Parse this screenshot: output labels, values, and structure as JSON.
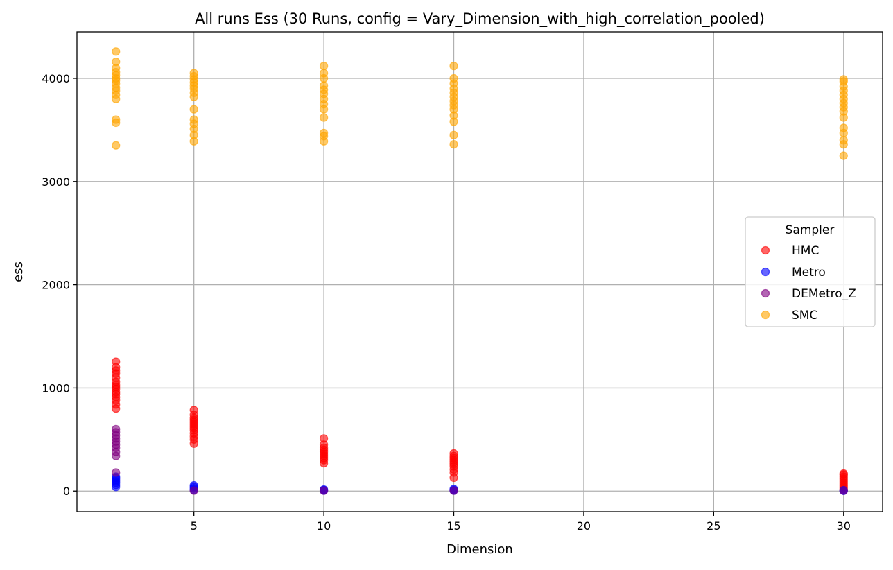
{
  "chart_data": {
    "type": "scatter",
    "title": "All runs Ess (30 Runs, config = Vary_Dimension_with_high_correlation_pooled)",
    "xlabel": "Dimension",
    "ylabel": "ess",
    "xlim": [
      0.5,
      31.5
    ],
    "ylim": [
      -200,
      4450
    ],
    "xticks": [
      5,
      10,
      15,
      20,
      25,
      30
    ],
    "yticks": [
      0,
      1000,
      2000,
      3000,
      4000
    ],
    "grid": true,
    "legend": {
      "title": "Sampler",
      "position": "center-right"
    },
    "series": [
      {
        "name": "HMC",
        "color": "#ff0000",
        "points": [
          [
            2,
            800
          ],
          [
            2,
            840
          ],
          [
            2,
            880
          ],
          [
            2,
            910
          ],
          [
            2,
            940
          ],
          [
            2,
            960
          ],
          [
            2,
            990
          ],
          [
            2,
            1010
          ],
          [
            2,
            1030
          ],
          [
            2,
            1060
          ],
          [
            2,
            1100
          ],
          [
            2,
            1140
          ],
          [
            2,
            1170
          ],
          [
            2,
            1200
          ],
          [
            2,
            1255
          ],
          [
            5,
            460
          ],
          [
            5,
            500
          ],
          [
            5,
            530
          ],
          [
            5,
            560
          ],
          [
            5,
            590
          ],
          [
            5,
            610
          ],
          [
            5,
            630
          ],
          [
            5,
            650
          ],
          [
            5,
            670
          ],
          [
            5,
            690
          ],
          [
            5,
            710
          ],
          [
            5,
            740
          ],
          [
            5,
            785
          ],
          [
            10,
            270
          ],
          [
            10,
            300
          ],
          [
            10,
            320
          ],
          [
            10,
            340
          ],
          [
            10,
            360
          ],
          [
            10,
            380
          ],
          [
            10,
            400
          ],
          [
            10,
            420
          ],
          [
            10,
            450
          ],
          [
            10,
            510
          ],
          [
            15,
            130
          ],
          [
            15,
            180
          ],
          [
            15,
            210
          ],
          [
            15,
            240
          ],
          [
            15,
            260
          ],
          [
            15,
            280
          ],
          [
            15,
            300
          ],
          [
            15,
            320
          ],
          [
            15,
            340
          ],
          [
            15,
            365
          ],
          [
            30,
            20
          ],
          [
            30,
            40
          ],
          [
            30,
            60
          ],
          [
            30,
            80
          ],
          [
            30,
            100
          ],
          [
            30,
            120
          ],
          [
            30,
            140
          ],
          [
            30,
            160
          ],
          [
            30,
            170
          ]
        ]
      },
      {
        "name": "Metro",
        "color": "#0000ff",
        "points": [
          [
            2,
            40
          ],
          [
            2,
            60
          ],
          [
            2,
            80
          ],
          [
            2,
            95
          ],
          [
            2,
            110
          ],
          [
            2,
            125
          ],
          [
            2,
            140
          ],
          [
            5,
            10
          ],
          [
            5,
            25
          ],
          [
            5,
            40
          ],
          [
            5,
            55
          ],
          [
            10,
            5
          ],
          [
            10,
            10
          ],
          [
            10,
            15
          ],
          [
            15,
            5
          ],
          [
            15,
            10
          ],
          [
            15,
            20
          ],
          [
            30,
            3
          ],
          [
            30,
            8
          ]
        ]
      },
      {
        "name": "DEMetro_Z",
        "color": "#800080",
        "points": [
          [
            2,
            180
          ],
          [
            2,
            340
          ],
          [
            2,
            380
          ],
          [
            2,
            420
          ],
          [
            2,
            450
          ],
          [
            2,
            480
          ],
          [
            2,
            510
          ],
          [
            2,
            540
          ],
          [
            2,
            570
          ],
          [
            2,
            600
          ],
          [
            5,
            5
          ],
          [
            10,
            5
          ],
          [
            15,
            5
          ],
          [
            30,
            5
          ]
        ]
      },
      {
        "name": "SMC",
        "color": "#ffa500",
        "points": [
          [
            2,
            3350
          ],
          [
            2,
            3570
          ],
          [
            2,
            3600
          ],
          [
            2,
            3800
          ],
          [
            2,
            3840
          ],
          [
            2,
            3880
          ],
          [
            2,
            3910
          ],
          [
            2,
            3950
          ],
          [
            2,
            3980
          ],
          [
            2,
            4000
          ],
          [
            2,
            4030
          ],
          [
            2,
            4060
          ],
          [
            2,
            4100
          ],
          [
            2,
            4160
          ],
          [
            2,
            4260
          ],
          [
            5,
            3390
          ],
          [
            5,
            3450
          ],
          [
            5,
            3510
          ],
          [
            5,
            3560
          ],
          [
            5,
            3600
          ],
          [
            5,
            3700
          ],
          [
            5,
            3820
          ],
          [
            5,
            3860
          ],
          [
            5,
            3900
          ],
          [
            5,
            3930
          ],
          [
            5,
            3960
          ],
          [
            5,
            3990
          ],
          [
            5,
            4020
          ],
          [
            5,
            4050
          ],
          [
            10,
            3390
          ],
          [
            10,
            3440
          ],
          [
            10,
            3470
          ],
          [
            10,
            3620
          ],
          [
            10,
            3700
          ],
          [
            10,
            3750
          ],
          [
            10,
            3800
          ],
          [
            10,
            3850
          ],
          [
            10,
            3890
          ],
          [
            10,
            3930
          ],
          [
            10,
            4000
          ],
          [
            10,
            4050
          ],
          [
            10,
            4120
          ],
          [
            15,
            3360
          ],
          [
            15,
            3450
          ],
          [
            15,
            3580
          ],
          [
            15,
            3640
          ],
          [
            15,
            3700
          ],
          [
            15,
            3740
          ],
          [
            15,
            3780
          ],
          [
            15,
            3820
          ],
          [
            15,
            3860
          ],
          [
            15,
            3900
          ],
          [
            15,
            3950
          ],
          [
            15,
            4000
          ],
          [
            15,
            4120
          ],
          [
            30,
            3250
          ],
          [
            30,
            3360
          ],
          [
            30,
            3400
          ],
          [
            30,
            3470
          ],
          [
            30,
            3520
          ],
          [
            30,
            3620
          ],
          [
            30,
            3680
          ],
          [
            30,
            3720
          ],
          [
            30,
            3760
          ],
          [
            30,
            3800
          ],
          [
            30,
            3840
          ],
          [
            30,
            3880
          ],
          [
            30,
            3920
          ],
          [
            30,
            3970
          ],
          [
            30,
            3990
          ]
        ]
      }
    ]
  }
}
